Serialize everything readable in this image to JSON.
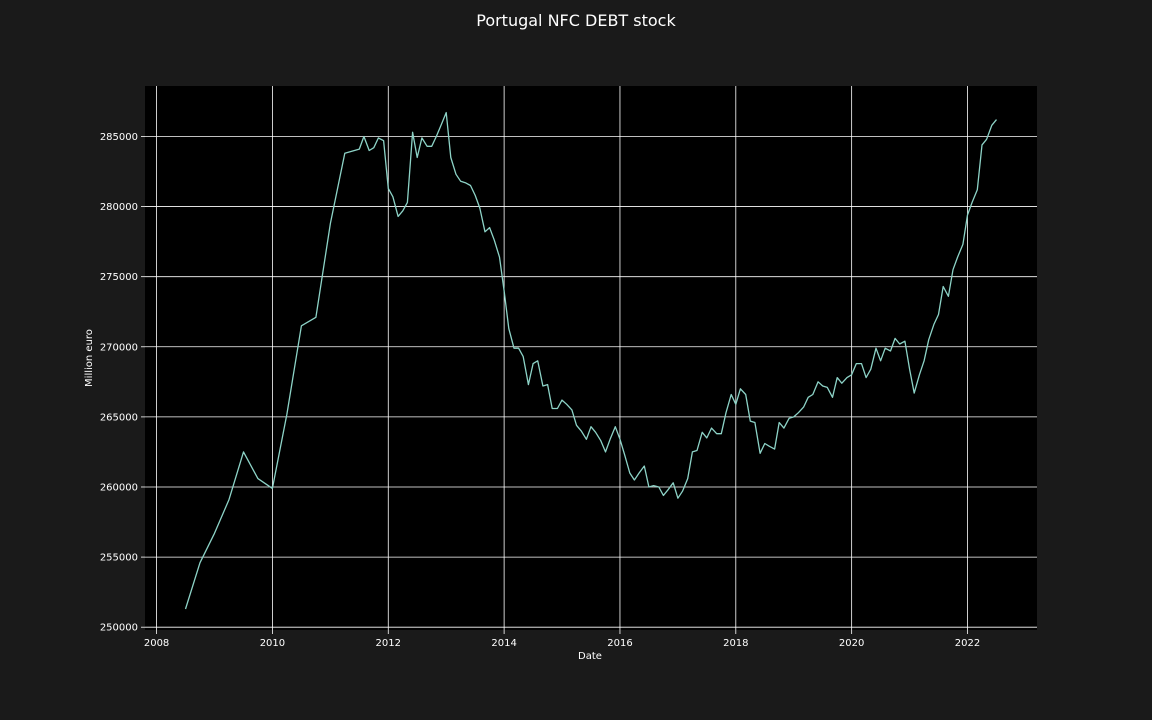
{
  "chart_data": {
    "type": "line",
    "title": "Portugal NFC DEBT stock",
    "xlabel": "Date",
    "ylabel": "Million euro",
    "x_ticks": [
      "2008",
      "2010",
      "2012",
      "2014",
      "2016",
      "2018",
      "2020",
      "2022"
    ],
    "y_ticks": [
      "250000",
      "255000",
      "260000",
      "265000",
      "270000",
      "275000",
      "280000",
      "285000"
    ],
    "xlim": [
      2007.8,
      2023.2
    ],
    "ylim": [
      249800,
      288600
    ],
    "grid": true,
    "colors": {
      "background": "#1a1a1a",
      "plot_background": "#000000",
      "grid": "#ffffff",
      "line": "#8dd3c7",
      "text": "#ffffff"
    },
    "series": [
      {
        "x": [
          2008.5,
          2008.75,
          2009.0,
          2009.25,
          2009.5,
          2009.75,
          2010.0,
          2010.25,
          2010.5,
          2010.75,
          2011.0,
          2011.25,
          2011.5,
          2011.58,
          2011.67,
          2011.75,
          2011.83,
          2011.92,
          2012.0,
          2012.08,
          2012.17,
          2012.25,
          2012.33,
          2012.42,
          2012.5,
          2012.58,
          2012.67,
          2012.75,
          2012.83,
          2012.92,
          2013.0,
          2013.08,
          2013.17,
          2013.25,
          2013.33,
          2013.42,
          2013.5,
          2013.58,
          2013.67,
          2013.75,
          2013.83,
          2013.92,
          2014.0,
          2014.08,
          2014.17,
          2014.25,
          2014.33,
          2014.42,
          2014.5,
          2014.58,
          2014.67,
          2014.75,
          2014.83,
          2014.92,
          2015.0,
          2015.08,
          2015.17,
          2015.25,
          2015.33,
          2015.42,
          2015.5,
          2015.58,
          2015.67,
          2015.75,
          2015.83,
          2015.92,
          2016.0,
          2016.08,
          2016.17,
          2016.25,
          2016.33,
          2016.42,
          2016.5,
          2016.58,
          2016.67,
          2016.75,
          2016.83,
          2016.92,
          2017.0,
          2017.08,
          2017.17,
          2017.25,
          2017.33,
          2017.42,
          2017.5,
          2017.58,
          2017.67,
          2017.75,
          2017.83,
          2017.92,
          2018.0,
          2018.08,
          2018.17,
          2018.25,
          2018.33,
          2018.42,
          2018.5,
          2018.58,
          2018.67,
          2018.75,
          2018.83,
          2018.92,
          2019.0,
          2019.08,
          2019.17,
          2019.25,
          2019.33,
          2019.42,
          2019.5,
          2019.58,
          2019.67,
          2019.75,
          2019.83,
          2019.92,
          2020.0,
          2020.08,
          2020.17,
          2020.25,
          2020.33,
          2020.42,
          2020.5,
          2020.58,
          2020.67,
          2020.75,
          2020.83,
          2020.92,
          2021.0,
          2021.08,
          2021.17,
          2021.25,
          2021.33,
          2021.42,
          2021.5,
          2021.58,
          2021.67,
          2021.75,
          2021.83,
          2021.92,
          2022.0,
          2022.08,
          2022.17,
          2022.25,
          2022.33,
          2022.42,
          2022.5
        ],
        "y": [
          251300,
          254600,
          256700,
          259100,
          262500,
          260600,
          259900,
          265200,
          271500,
          272100,
          278800,
          283800,
          284100,
          285000,
          284000,
          284200,
          284900,
          284700,
          281300,
          280700,
          279300,
          279700,
          280300,
          285300,
          283500,
          284900,
          284300,
          284300,
          285000,
          285900,
          286700,
          283500,
          282300,
          281800,
          281700,
          281500,
          280800,
          279900,
          278200,
          278500,
          277600,
          276400,
          274000,
          271300,
          269900,
          269900,
          269300,
          267300,
          268800,
          269000,
          267200,
          267300,
          265600,
          265600,
          266200,
          265900,
          265500,
          264400,
          264000,
          263400,
          264300,
          263900,
          263300,
          262500,
          263400,
          264300,
          263400,
          262300,
          261000,
          260500,
          261000,
          261500,
          260000,
          260100,
          260000,
          259400,
          259800,
          260300,
          259200,
          259700,
          260600,
          262500,
          262600,
          263900,
          263500,
          264200,
          263800,
          263800,
          265300,
          266600,
          265900,
          267000,
          266600,
          264700,
          264600,
          262400,
          263100,
          262900,
          262700,
          264600,
          264200,
          264900,
          265000,
          265300,
          265700,
          266400,
          266600,
          267500,
          267200,
          267100,
          266400,
          267800,
          267400,
          267800,
          268000,
          268800,
          268800,
          267800,
          268400,
          269900,
          269000,
          269900,
          269700,
          270600,
          270200,
          270400,
          268400,
          266700,
          268000,
          269000,
          270500,
          271600,
          272300,
          274300,
          273600,
          275500,
          276400,
          277300,
          279400,
          280300,
          281200,
          284400,
          284800,
          285800,
          286200
        ]
      }
    ]
  }
}
